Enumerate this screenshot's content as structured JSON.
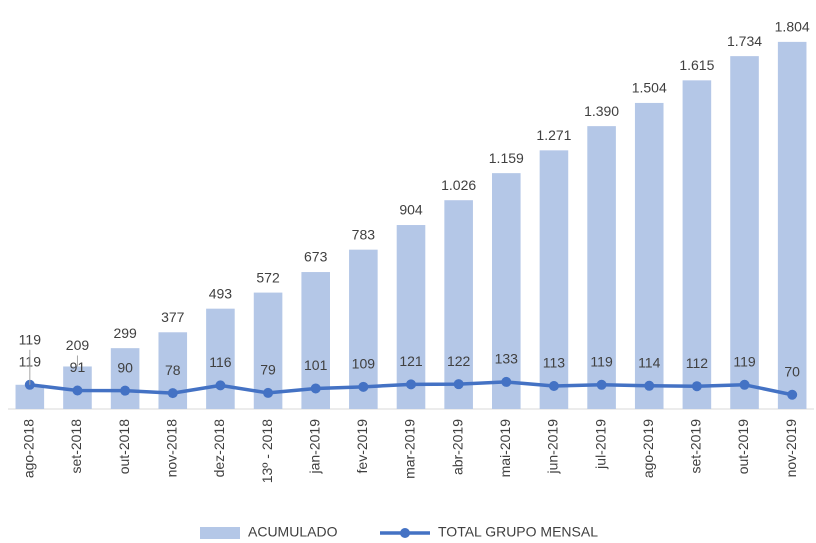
{
  "chart_data": {
    "type": "bar_line",
    "categories": [
      "ago-2018",
      "set-2018",
      "out-2018",
      "nov-2018",
      "dez-2018",
      "13º - 2018",
      "jan-2019",
      "fev-2019",
      "mar-2019",
      "abr-2019",
      "mai-2019",
      "jun-2019",
      "jul-2019",
      "ago-2019",
      "set-2019",
      "out-2019",
      "nov-2019"
    ],
    "series": [
      {
        "name": "ACUMULADO",
        "type": "bar",
        "color": "#b4c7e7",
        "values": [
          119,
          209,
          299,
          377,
          493,
          572,
          673,
          783,
          904,
          1026,
          1159,
          1271,
          1390,
          1504,
          1615,
          1734,
          1804
        ],
        "value_labels": [
          "119",
          "209",
          "299",
          "377",
          "493",
          "572",
          "673",
          "783",
          "904",
          "1.026",
          "1.159",
          "1.271",
          "1.390",
          "1.504",
          "1.615",
          "1.734",
          "1.804"
        ]
      },
      {
        "name": "TOTAL GRUPO MENSAL",
        "type": "line",
        "color": "#4472c4",
        "values": [
          119,
          91,
          90,
          78,
          116,
          79,
          101,
          109,
          121,
          122,
          133,
          113,
          119,
          114,
          112,
          119,
          70
        ]
      }
    ],
    "ylim": [
      0,
      2000
    ],
    "grid": false,
    "legend": "bottom"
  }
}
